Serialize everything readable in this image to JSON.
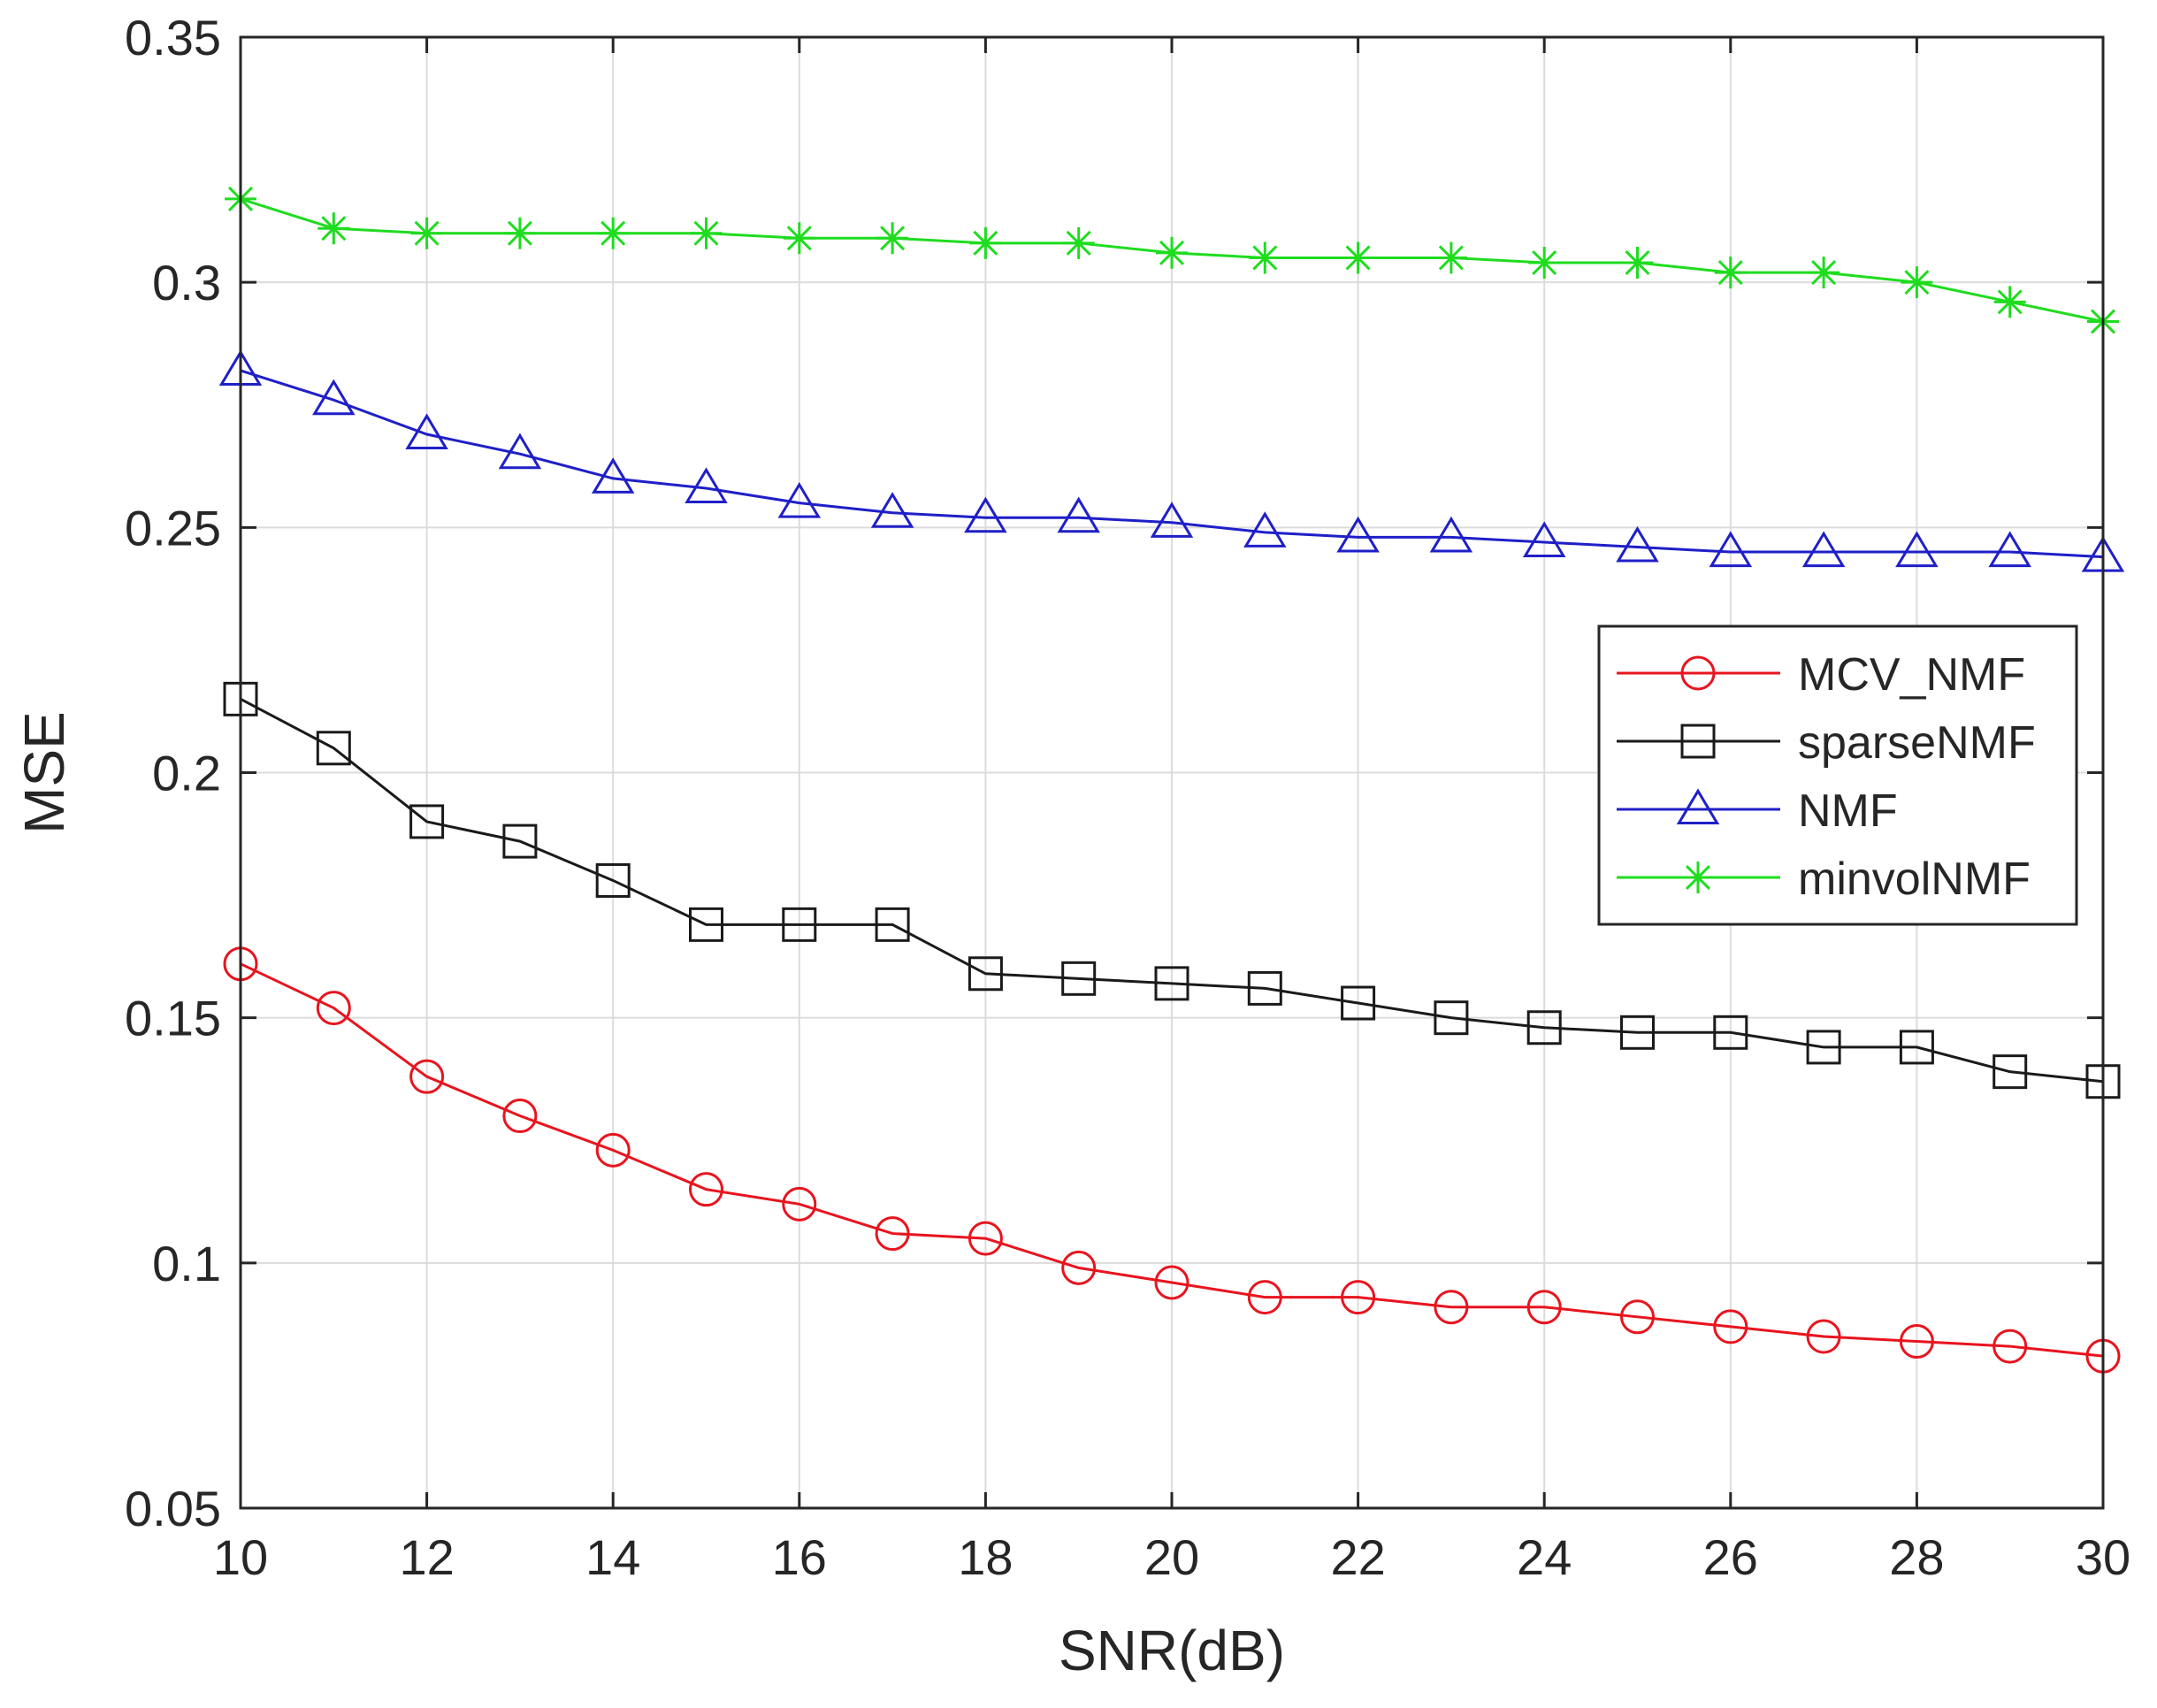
{
  "chart_data": {
    "type": "line",
    "title": "",
    "xlabel": "SNR(dB)",
    "ylabel": "MSE",
    "xlim": [
      10,
      30
    ],
    "ylim": [
      0.05,
      0.35
    ],
    "xticks": [
      10,
      12,
      14,
      16,
      18,
      20,
      22,
      24,
      26,
      28,
      30
    ],
    "yticks": [
      0.05,
      0.1,
      0.15,
      0.2,
      0.25,
      0.3,
      0.35
    ],
    "xtick_labels": [
      "10",
      "12",
      "14",
      "16",
      "18",
      "20",
      "22",
      "24",
      "26",
      "28",
      "30"
    ],
    "ytick_labels": [
      "0.05",
      "0.1",
      "0.15",
      "0.2",
      "0.25",
      "0.3",
      "0.35"
    ],
    "grid": true,
    "legend_position": "center-right",
    "x": [
      10,
      11,
      12,
      13,
      14,
      15,
      16,
      17,
      18,
      19,
      20,
      21,
      22,
      23,
      24,
      25,
      26,
      27,
      28,
      29,
      30
    ],
    "series": [
      {
        "name": "MCV_NMF",
        "color": "#e8141e",
        "marker": "circle",
        "values": [
          0.161,
          0.152,
          0.138,
          0.13,
          0.123,
          0.115,
          0.112,
          0.106,
          0.105,
          0.099,
          0.096,
          0.093,
          0.093,
          0.091,
          0.091,
          0.089,
          0.087,
          0.085,
          0.084,
          0.083,
          0.081
        ]
      },
      {
        "name": "sparseNMF",
        "color": "#1a1a1a",
        "marker": "square",
        "values": [
          0.215,
          0.205,
          0.19,
          0.186,
          0.178,
          0.169,
          0.169,
          0.169,
          0.159,
          0.158,
          0.157,
          0.156,
          0.153,
          0.15,
          0.148,
          0.147,
          0.147,
          0.144,
          0.144,
          0.139,
          0.137
        ]
      },
      {
        "name": "NMF",
        "color": "#1f1fc8",
        "marker": "triangle",
        "values": [
          0.282,
          0.276,
          0.269,
          0.265,
          0.26,
          0.258,
          0.255,
          0.253,
          0.252,
          0.252,
          0.251,
          0.249,
          0.248,
          0.248,
          0.247,
          0.246,
          0.245,
          0.245,
          0.245,
          0.245,
          0.244
        ]
      },
      {
        "name": "minvolNMF",
        "color": "#1fdc1f",
        "marker": "asterisk",
        "values": [
          0.317,
          0.311,
          0.31,
          0.31,
          0.31,
          0.31,
          0.309,
          0.309,
          0.308,
          0.308,
          0.306,
          0.305,
          0.305,
          0.305,
          0.304,
          0.304,
          0.302,
          0.302,
          0.3,
          0.296,
          0.292
        ]
      }
    ]
  }
}
